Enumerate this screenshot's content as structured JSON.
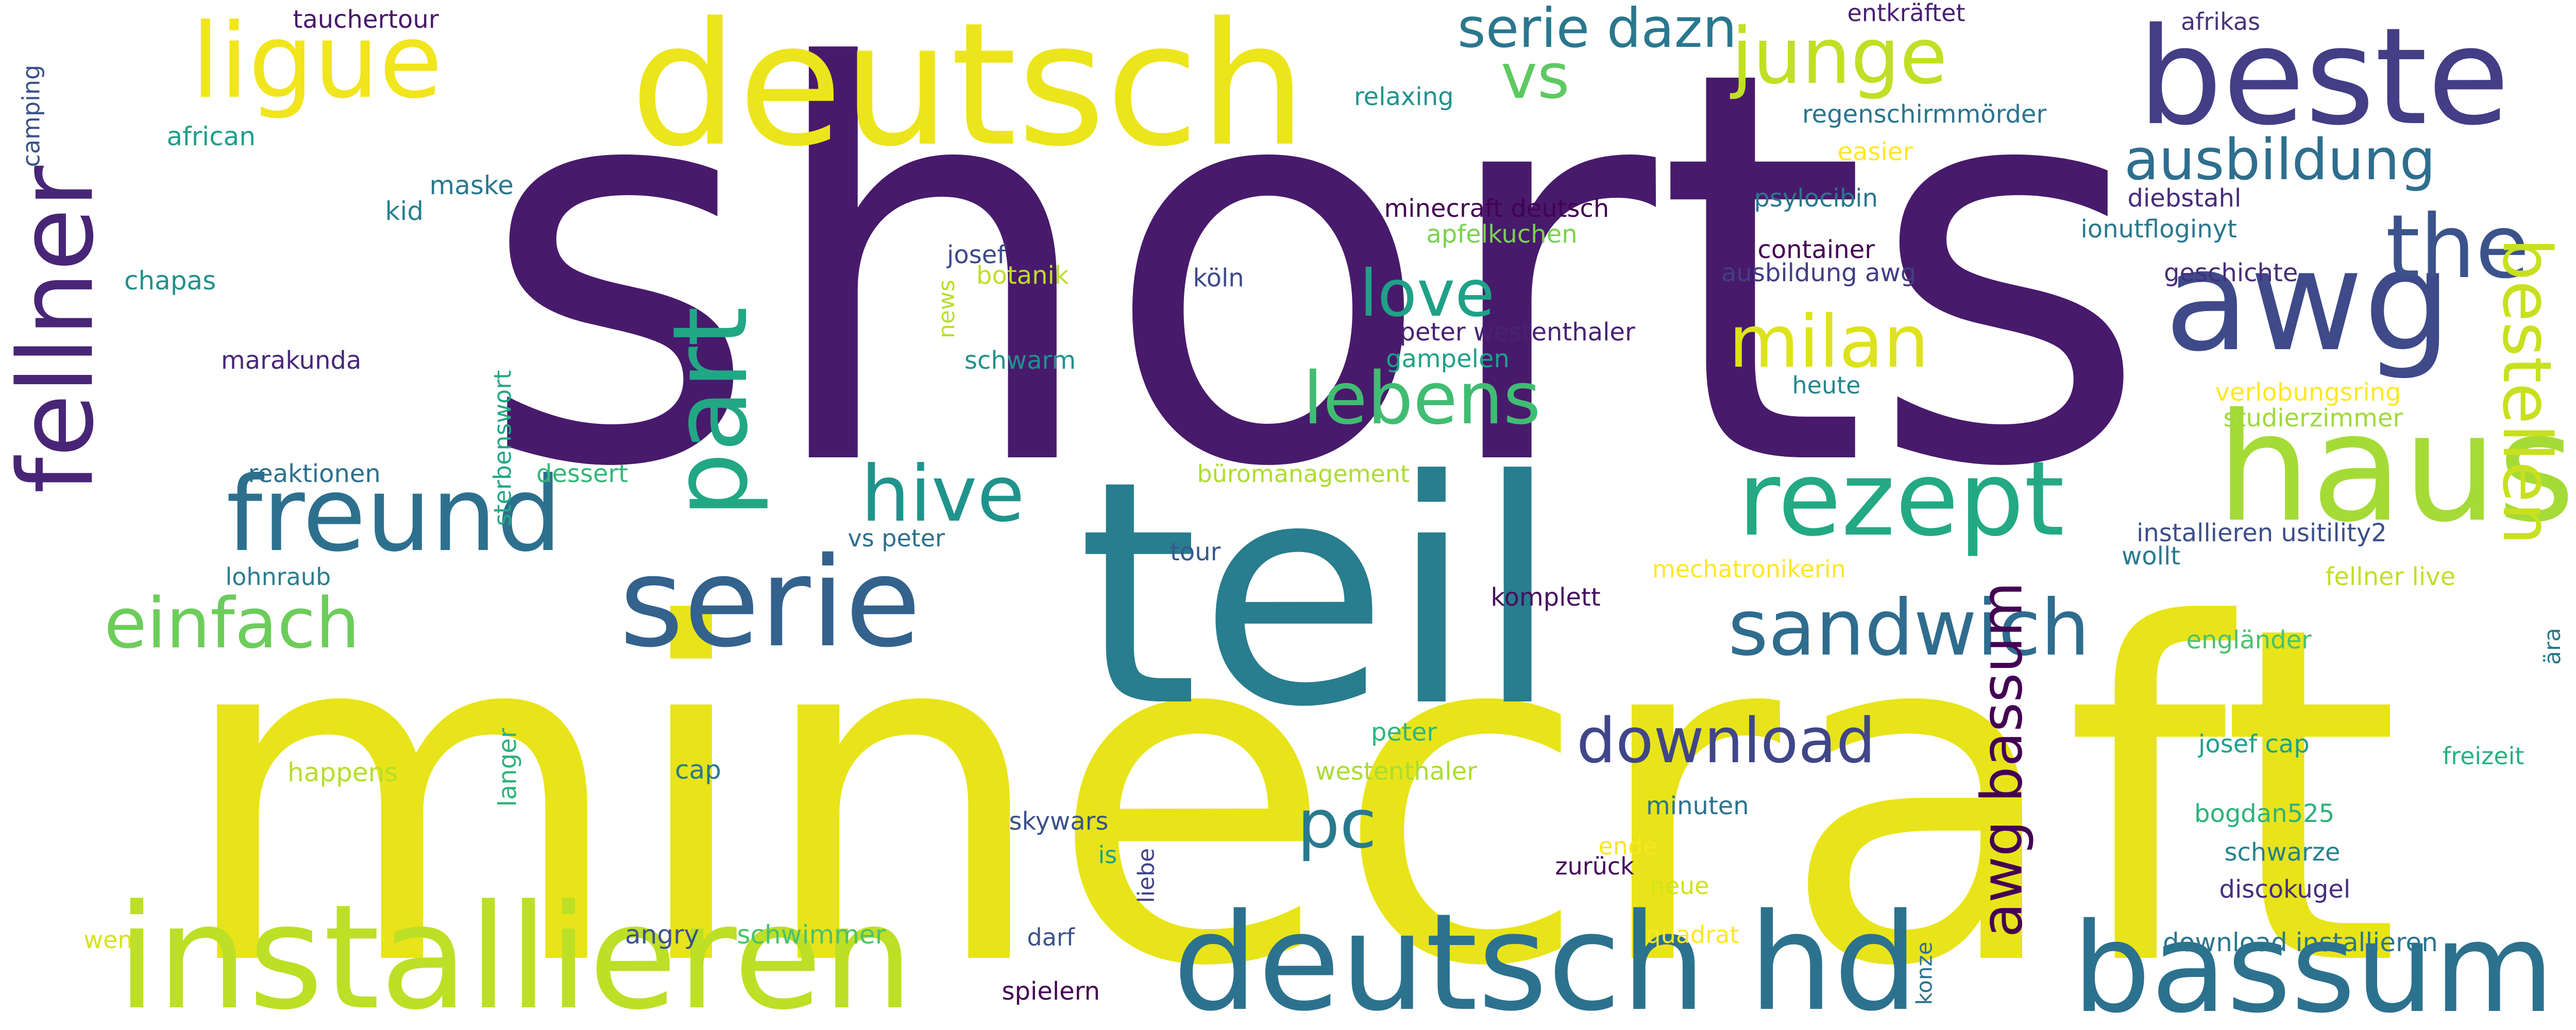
{
  "words": [
    {
      "text": "shorts",
      "color": "#481a6c"
    },
    {
      "text": "minecraft",
      "color": "#e8e419"
    },
    {
      "text": "teil",
      "color": "#287d8e"
    },
    {
      "text": "deutsch",
      "color": "#ece51b"
    },
    {
      "text": "installieren",
      "color": "#bddf26"
    },
    {
      "text": "deutsch hd",
      "color": "#2c728e"
    },
    {
      "text": "bassum",
      "color": "#2c718e"
    },
    {
      "text": "beste",
      "color": "#433e85"
    },
    {
      "text": "haus",
      "color": "#a5db36"
    },
    {
      "text": "awg",
      "color": "#3e4a89"
    },
    {
      "text": "serie",
      "color": "#33628d"
    },
    {
      "text": "fellner",
      "color": "#482576"
    },
    {
      "text": "freund",
      "color": "#2d708e"
    },
    {
      "text": "rezept",
      "color": "#23a983"
    },
    {
      "text": "ligue",
      "color": "#f1e51d"
    },
    {
      "text": "part",
      "color": "#22a785"
    },
    {
      "text": "the",
      "color": "#3b528b"
    },
    {
      "text": "bestellen",
      "color": "#c8e020"
    },
    {
      "text": "sandwich",
      "color": "#2f6c8e"
    },
    {
      "text": "hive",
      "color": "#1f948c"
    },
    {
      "text": "junge",
      "color": "#c0df25"
    },
    {
      "text": "milan",
      "color": "#dde318"
    },
    {
      "text": "lebens",
      "color": "#40bd72"
    },
    {
      "text": "love",
      "color": "#1fa187"
    },
    {
      "text": "einfach",
      "color": "#6ccd5a"
    },
    {
      "text": "download",
      "color": "#404688"
    },
    {
      "text": "awg bassum",
      "color": "#440154"
    },
    {
      "text": "pc",
      "color": "#297a8e"
    },
    {
      "text": "vs",
      "color": "#5ec962"
    },
    {
      "text": "serie dazn",
      "color": "#2a778e"
    },
    {
      "text": "ausbildung",
      "color": "#2e6e8e"
    },
    {
      "text": "tauchertour",
      "color": "#481769"
    },
    {
      "text": "camping",
      "color": "#3b528b"
    },
    {
      "text": "african",
      "color": "#1f9e89"
    },
    {
      "text": "maske",
      "color": "#2a788e"
    },
    {
      "text": "kid",
      "color": "#27808e"
    },
    {
      "text": "chapas",
      "color": "#21918c"
    },
    {
      "text": "marakunda",
      "color": "#482878"
    },
    {
      "text": "reaktionen",
      "color": "#2d708e"
    },
    {
      "text": "sterbenswort",
      "color": "#22a884"
    },
    {
      "text": "dessert",
      "color": "#35b779"
    },
    {
      "text": "lohnraub",
      "color": "#277f8e"
    },
    {
      "text": "happens",
      "color": "#b5de2b"
    },
    {
      "text": "langer",
      "color": "#2db27d"
    },
    {
      "text": "cap",
      "color": "#2a788e"
    },
    {
      "text": "wen",
      "color": "#d8e219"
    },
    {
      "text": "angry",
      "color": "#3b528b"
    },
    {
      "text": "schwimmer",
      "color": "#4ac16d"
    },
    {
      "text": "relaxing",
      "color": "#20938c"
    },
    {
      "text": "minecraft deutsch",
      "color": "#440154"
    },
    {
      "text": "apfelkuchen",
      "color": "#7ad151"
    },
    {
      "text": "josef",
      "color": "#3e4a89"
    },
    {
      "text": "botanik",
      "color": "#bddf26"
    },
    {
      "text": "news",
      "color": "#b8de29"
    },
    {
      "text": "schwarm",
      "color": "#21918c"
    },
    {
      "text": "köln",
      "color": "#3e4989"
    },
    {
      "text": "peter westenthaler",
      "color": "#482173"
    },
    {
      "text": "gampelen",
      "color": "#1fa188"
    },
    {
      "text": "heute",
      "color": "#24868e"
    },
    {
      "text": "entkräftet",
      "color": "#482071"
    },
    {
      "text": "regenschirmmörder",
      "color": "#2b748e"
    },
    {
      "text": "easier",
      "color": "#fde725"
    },
    {
      "text": "psylocibin",
      "color": "#2a788e"
    },
    {
      "text": "container",
      "color": "#440154"
    },
    {
      "text": "ausbildung awg",
      "color": "#433d84"
    },
    {
      "text": "afrikas",
      "color": "#46337f"
    },
    {
      "text": "diebstahl",
      "color": "#472c7a"
    },
    {
      "text": "ionutfloginyt",
      "color": "#2a788e"
    },
    {
      "text": "geschichte",
      "color": "#472d7b"
    },
    {
      "text": "verlobungsring",
      "color": "#fde725"
    },
    {
      "text": "studierzimmer",
      "color": "#9fda3a"
    },
    {
      "text": "büromanagement",
      "color": "#addc30"
    },
    {
      "text": "vs peter",
      "color": "#2e6f8e"
    },
    {
      "text": "tour",
      "color": "#38598c"
    },
    {
      "text": "komplett",
      "color": "#470d60"
    },
    {
      "text": "mechatronikerin",
      "color": "#fde725"
    },
    {
      "text": "installieren usitility2",
      "color": "#3d4e8a"
    },
    {
      "text": "wollt",
      "color": "#29798e"
    },
    {
      "text": "fellner live",
      "color": "#c2df23"
    },
    {
      "text": "ära",
      "color": "#2a788e"
    },
    {
      "text": "engländer",
      "color": "#4ac16d"
    },
    {
      "text": "peter",
      "color": "#2fb47c"
    },
    {
      "text": "westenthaler",
      "color": "#aadc32"
    },
    {
      "text": "josef cap",
      "color": "#1fa187"
    },
    {
      "text": "freizeit",
      "color": "#2ab07f"
    },
    {
      "text": "minuten",
      "color": "#2c738e"
    },
    {
      "text": "bogdan525",
      "color": "#2db27d"
    },
    {
      "text": "skywars",
      "color": "#3b518b"
    },
    {
      "text": "is",
      "color": "#1f9f88"
    },
    {
      "text": "liebe",
      "color": "#414287"
    },
    {
      "text": "ende",
      "color": "#f8e621"
    },
    {
      "text": "zurück",
      "color": "#450559"
    },
    {
      "text": "schwarze",
      "color": "#26818e"
    },
    {
      "text": "neue",
      "color": "#d2e21b"
    },
    {
      "text": "discokugel",
      "color": "#472e7c"
    },
    {
      "text": "darf",
      "color": "#3b528b"
    },
    {
      "text": "quadrat",
      "color": "#fde725"
    },
    {
      "text": "konze",
      "color": "#2c728e"
    },
    {
      "text": "spielern",
      "color": "#440154"
    },
    {
      "text": "download installieren",
      "color": "#2a768e"
    }
  ]
}
